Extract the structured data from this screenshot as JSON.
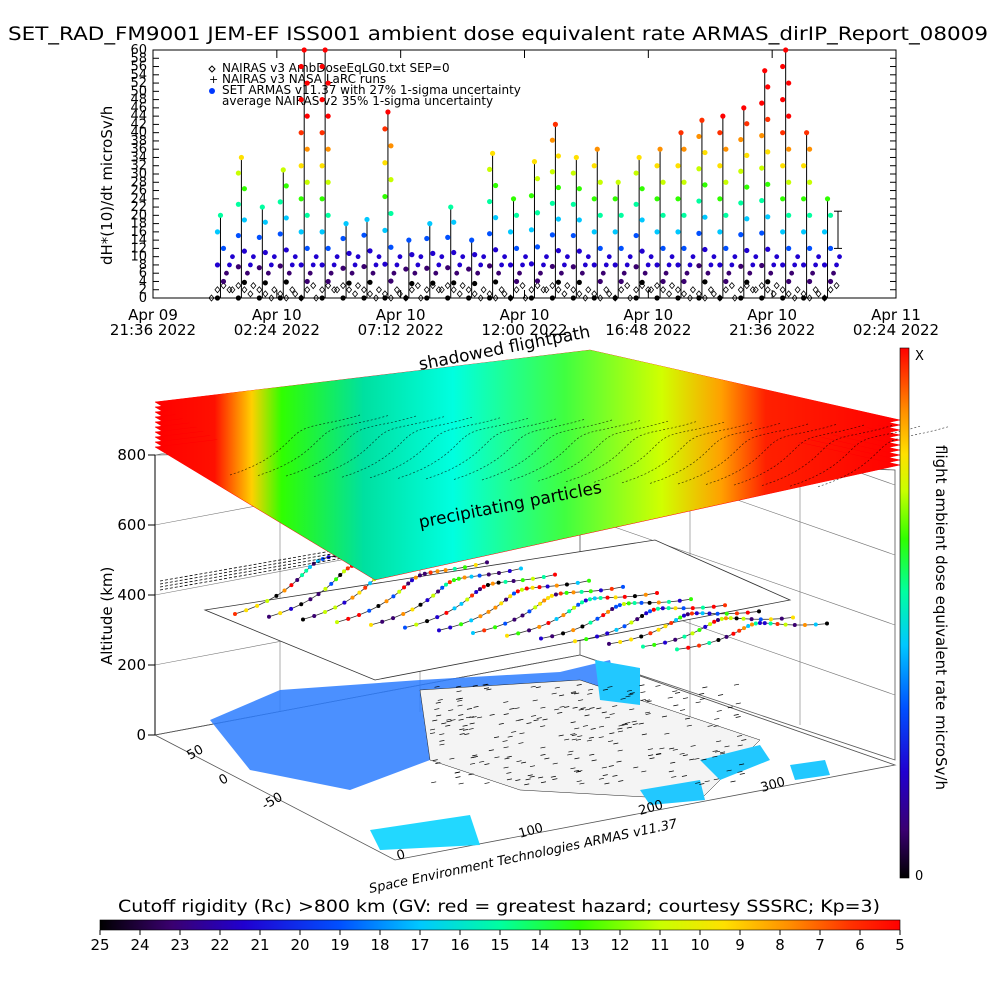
{
  "title": "SET_RAD_FM9001  JEM-EF ISS001 ambient dose equivalent rate ARMAS_dirIP_Report_08009",
  "colors": {
    "rainbow": [
      "#000000",
      "#3a0070",
      "#2000d0",
      "#0050ff",
      "#00c8ff",
      "#00ffa0",
      "#30ff00",
      "#c8ff00",
      "#ffe000",
      "#ff9000",
      "#ff3000",
      "#ff0000"
    ],
    "nairas_marker": "#000000",
    "armas_marker": "#0038ff"
  },
  "chart_data": [
    {
      "type": "scatter",
      "name": "time-series",
      "title": "SET_RAD_FM9001  JEM-EF ISS001 ambient dose equivalent rate ARMAS_dirIP_Report_08009",
      "ylabel": "dH*(10)/dt microSv/h",
      "ylim": [
        0,
        60
      ],
      "yticks": [
        0,
        2,
        4,
        6,
        8,
        10,
        12,
        14,
        16,
        18,
        20,
        22,
        24,
        26,
        28,
        30,
        32,
        34,
        36,
        38,
        40,
        42,
        44,
        46,
        48,
        50,
        52,
        54,
        56,
        58,
        60
      ],
      "xlim": [
        "2022-04-09 21:36",
        "2022-04-11 02:24"
      ],
      "xticks": [
        {
          "line1": "Apr 09",
          "line2": "21:36  2022"
        },
        {
          "line1": "Apr 10",
          "line2": "02:24  2022"
        },
        {
          "line1": "Apr 10",
          "line2": "07:12  2022"
        },
        {
          "line1": "Apr 10",
          "line2": "12:00  2022"
        },
        {
          "line1": "Apr 10",
          "line2": "16:48  2022"
        },
        {
          "line1": "Apr 10",
          "line2": "21:36  2022"
        },
        {
          "line1": "Apr 11",
          "line2": "02:24  2022"
        }
      ],
      "legend": [
        {
          "marker": "diamond",
          "label": "NAIRAS v3 AmbDoseEqLG0.txt SEP=0"
        },
        {
          "marker": "plus",
          "label": "NAIRAS v3 NASA LaRC runs"
        },
        {
          "marker": "dot",
          "label": "SET ARMAS v11.37 with 27% 1-sigma uncertainty"
        },
        {
          "marker": "none",
          "label": "average NAIRAS v2 35% 1-sigma uncertainty"
        }
      ],
      "legend_position": "top-left",
      "series": [
        {
          "name": "NAIRAS v3 AmbDoseEqLG0.txt SEP=0",
          "note": "periodic low values",
          "peaks": [
            0,
            2,
            3,
            2,
            1,
            0,
            2,
            3,
            2,
            1
          ]
        },
        {
          "name": "SET ARMAS v11.37 with 27% 1-sigma uncertainty",
          "peaks": [
            20,
            34,
            22,
            31,
            60,
            60,
            18,
            19,
            45,
            14,
            18,
            22,
            14,
            35,
            24,
            33,
            42,
            34,
            36,
            28,
            34,
            36,
            40,
            43,
            44,
            46,
            55,
            61,
            40,
            24
          ]
        }
      ],
      "error_bar_right": {
        "low": 12,
        "high": 21
      }
    },
    {
      "type": "area",
      "name": "3d-altitude-view",
      "zlabel": "Altitude (km)",
      "zticks": [
        0,
        200,
        400,
        600,
        800
      ],
      "lat_ticks": [
        "-50",
        "0",
        "50"
      ],
      "lon_ticks": [
        "0",
        "100",
        "200",
        "300"
      ],
      "annotations": [
        "shadowed flightpath",
        "precipitating particles",
        "Space Environment Technologies ARMAS v11.37"
      ],
      "colorbar": {
        "label": "flight ambient dose equivalent rate microSv/h",
        "top": "X",
        "bottom": "0"
      }
    },
    {
      "type": "heatmap",
      "name": "cutoff-rigidity-colorbar",
      "title": "Cutoff rigidity (Rc) >800 km (GV: red = greatest hazard; courtesy SSSRC; Kp=3)",
      "ticks": [
        25,
        24,
        23,
        22,
        21,
        20,
        19,
        18,
        17,
        16,
        15,
        14,
        13,
        12,
        11,
        10,
        9,
        8,
        7,
        6,
        5
      ]
    }
  ]
}
